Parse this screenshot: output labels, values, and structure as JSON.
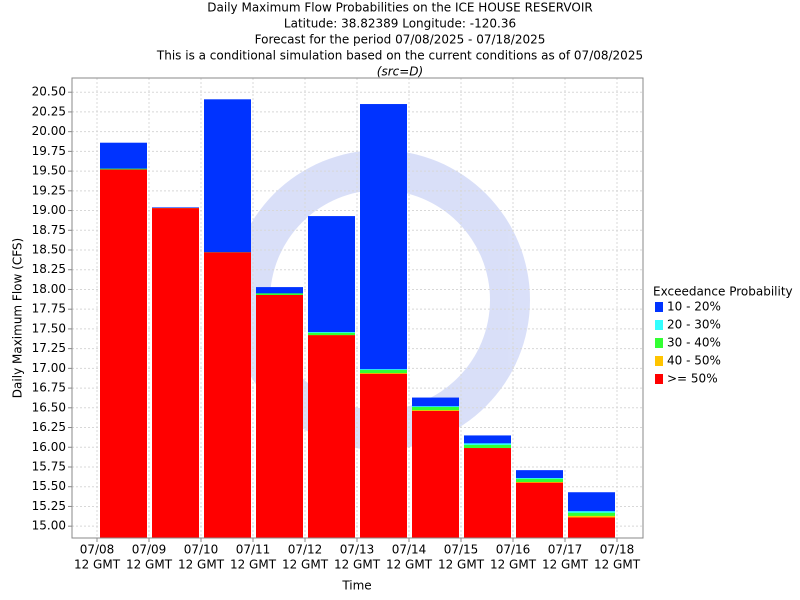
{
  "chart_data": {
    "type": "bar",
    "title_lines": [
      "Daily Maximum Flow Probabilities on the ICE HOUSE RESERVOIR",
      "Latitude: 38.82389 Longitude: -120.36",
      "Forecast for the period 07/08/2025 - 07/18/2025",
      "This is a conditional simulation based on the current conditions as of 07/08/2025"
    ],
    "subtitle": "(src=D)",
    "xlabel": "Time",
    "ylabel": "Daily Maximum Flow (CFS)",
    "legend_title": "Exceedance Probability",
    "legend": "right",
    "grid": true,
    "xticks": [
      {
        "date": "07/08",
        "time": "12 GMT"
      },
      {
        "date": "07/09",
        "time": "12 GMT"
      },
      {
        "date": "07/10",
        "time": "12 GMT"
      },
      {
        "date": "07/11",
        "time": "12 GMT"
      },
      {
        "date": "07/12",
        "time": "12 GMT"
      },
      {
        "date": "07/13",
        "time": "12 GMT"
      },
      {
        "date": "07/14",
        "time": "12 GMT"
      },
      {
        "date": "07/15",
        "time": "12 GMT"
      },
      {
        "date": "07/16",
        "time": "12 GMT"
      },
      {
        "date": "07/17",
        "time": "12 GMT"
      },
      {
        "date": "07/18",
        "time": "12 GMT"
      }
    ],
    "ylim": [
      14.85,
      20.68
    ],
    "yticks": [
      {
        "value": 15,
        "label": "15.00"
      },
      {
        "value": 15.25,
        "label": "15.25"
      },
      {
        "value": 15.5,
        "label": "15.50"
      },
      {
        "value": 15.75,
        "label": "15.75"
      },
      {
        "value": 16,
        "label": "16.00"
      },
      {
        "value": 16.25,
        "label": "16.25"
      },
      {
        "value": 16.5,
        "label": "16.50"
      },
      {
        "value": 16.75,
        "label": "16.75"
      },
      {
        "value": 17,
        "label": "17.00"
      },
      {
        "value": 17.25,
        "label": "17.25"
      },
      {
        "value": 17.5,
        "label": "17.50"
      },
      {
        "value": 17.75,
        "label": "17.75"
      },
      {
        "value": 18,
        "label": "18.00"
      },
      {
        "value": 18.25,
        "label": "18.25"
      },
      {
        "value": 18.5,
        "label": "18.50"
      },
      {
        "value": 18.75,
        "label": "18.75"
      },
      {
        "value": 19,
        "label": "19.00"
      },
      {
        "value": 19.25,
        "label": "19.25"
      },
      {
        "value": 19.5,
        "label": "19.50"
      },
      {
        "value": 19.75,
        "label": "19.75"
      },
      {
        "value": 20,
        "label": "20.00"
      },
      {
        "value": 20.25,
        "label": "20.25"
      },
      {
        "value": 20.5,
        "label": "20.50"
      }
    ],
    "series": [
      {
        "name": "10 - 20%",
        "color": "#0033ff",
        "values": [
          19.86,
          19.04,
          20.41,
          18.03,
          18.93,
          20.35,
          16.63,
          16.15,
          15.71,
          15.43
        ]
      },
      {
        "name": "20 - 30%",
        "color": "#33ffff",
        "values": [
          19.53,
          19.03,
          18.47,
          17.95,
          17.46,
          16.99,
          16.52,
          16.05,
          15.61,
          15.19
        ]
      },
      {
        "name": "30 - 40%",
        "color": "#33ff33",
        "values": [
          19.53,
          19.03,
          18.47,
          17.95,
          17.45,
          16.98,
          16.51,
          16.03,
          15.6,
          15.17
        ]
      },
      {
        "name": "40 - 50%",
        "color": "#ffc400",
        "values": [
          19.52,
          19.03,
          18.47,
          17.93,
          17.42,
          16.94,
          16.47,
          15.99,
          15.56,
          15.13
        ]
      },
      {
        "name": ">= 50%",
        "color": "#ff0000",
        "values": [
          19.52,
          19.03,
          18.47,
          17.93,
          17.42,
          16.93,
          16.46,
          15.99,
          15.55,
          15.11
        ]
      }
    ]
  }
}
